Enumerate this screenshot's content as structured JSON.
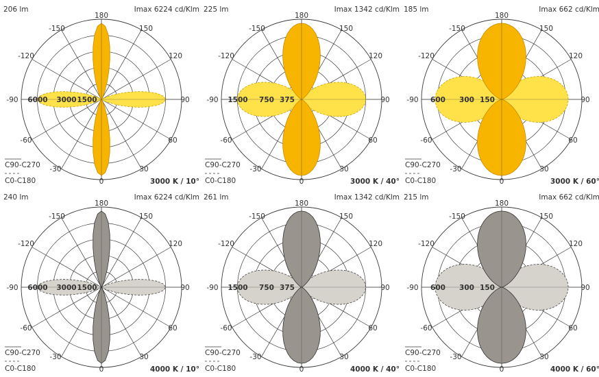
{
  "panels": [
    {
      "lumens": "206 lm",
      "imax": "Imax 6224 cd/Klm",
      "rings": [
        "6000",
        "3000",
        "1500"
      ],
      "legend": {
        "solid": "C90-C270",
        "dashed": "C0-C180"
      },
      "caption": "3000 K / 10°",
      "theme": "yellow",
      "beam_deg": 10
    },
    {
      "lumens": "225 lm",
      "imax": "Imax 1342 cd/Klm",
      "rings": [
        "1500",
        "750",
        "375"
      ],
      "legend": {
        "solid": "C90-C270",
        "dashed": "C0-C180"
      },
      "caption": "3000 K / 40°",
      "theme": "yellow",
      "beam_deg": 40
    },
    {
      "lumens": "185 lm",
      "imax": "Imax 662 cd/Klm",
      "rings": [
        "600",
        "300",
        "150"
      ],
      "legend": {
        "solid": "C90-C270",
        "dashed": "C0-C180"
      },
      "caption": "3000 K / 60°",
      "theme": "yellow",
      "beam_deg": 60
    },
    {
      "lumens": "240 lm",
      "imax": "Imax 6224 cd/Klm",
      "rings": [
        "6000",
        "3000",
        "1500"
      ],
      "legend": {
        "solid": "C90-C270",
        "dashed": "C0-C180"
      },
      "caption": "4000 K / 10°",
      "theme": "grey",
      "beam_deg": 10
    },
    {
      "lumens": "261 lm",
      "imax": "Imax 1342 cd/Klm",
      "rings": [
        "1500",
        "750",
        "375"
      ],
      "legend": {
        "solid": "C90-C270",
        "dashed": "C0-C180"
      },
      "caption": "4000 K / 40°",
      "theme": "grey",
      "beam_deg": 40
    },
    {
      "lumens": "215 lm",
      "imax": "Imax 662 cd/Klm",
      "rings": [
        "600",
        "300",
        "150"
      ],
      "legend": {
        "solid": "C90-C270",
        "dashed": "C0-C180"
      },
      "caption": "4000 K / 60°",
      "theme": "grey",
      "beam_deg": 60
    }
  ],
  "angle_labels": {
    "top": "180",
    "bottom": "0",
    "left": "-90",
    "right": "90",
    "upper_left": [
      "-150",
      "-120"
    ],
    "upper_right": [
      "150",
      "120"
    ],
    "lower_left": [
      "-60",
      "-30"
    ],
    "lower_right": [
      "60",
      "30"
    ]
  },
  "colors": {
    "yellow_solid_fill": "#F7B500",
    "yellow_solid_stroke": "#C98B00",
    "yellow_dashed_fill": "#FFE14A",
    "yellow_dashed_stroke": "#C9A000",
    "grey_solid_fill": "#9A948E",
    "grey_solid_stroke": "#333333",
    "grey_dashed_fill": "#D6D2CC",
    "grey_dashed_stroke": "#444444",
    "grid": "#3a3a3a",
    "text": "#333333"
  }
}
